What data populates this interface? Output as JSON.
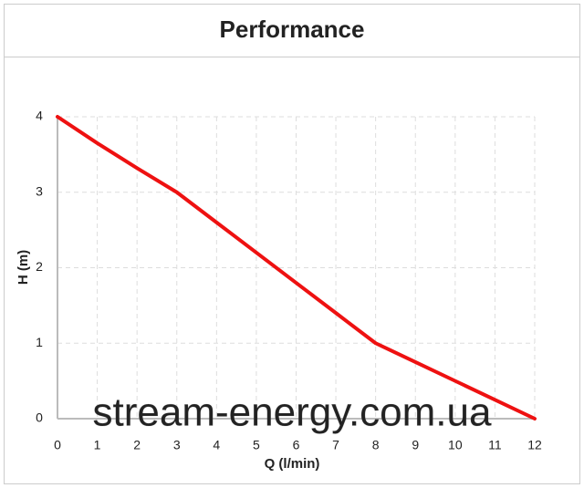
{
  "chart_data": {
    "type": "line",
    "title": "Performance",
    "x_label": "Q (l/min)",
    "y_label": "H (m)",
    "watermark": "stream-energy.com.ua",
    "x": [
      0,
      1,
      2,
      3,
      4,
      5,
      6,
      7,
      8,
      9,
      10,
      11,
      12
    ],
    "series": [
      {
        "name": "H",
        "color": "#ee1111",
        "values": [
          4,
          3.65,
          3.32,
          3.0,
          2.6,
          2.2,
          1.8,
          1.4,
          1.0,
          0.75,
          0.5,
          0.25,
          0
        ]
      }
    ],
    "xlim": [
      0,
      12
    ],
    "xticks": [
      0,
      1,
      2,
      3,
      4,
      5,
      6,
      7,
      8,
      9,
      10,
      11,
      12
    ],
    "ylim": [
      0,
      4
    ],
    "yticks": [
      0,
      1,
      2,
      3,
      4
    ],
    "grid": true
  }
}
